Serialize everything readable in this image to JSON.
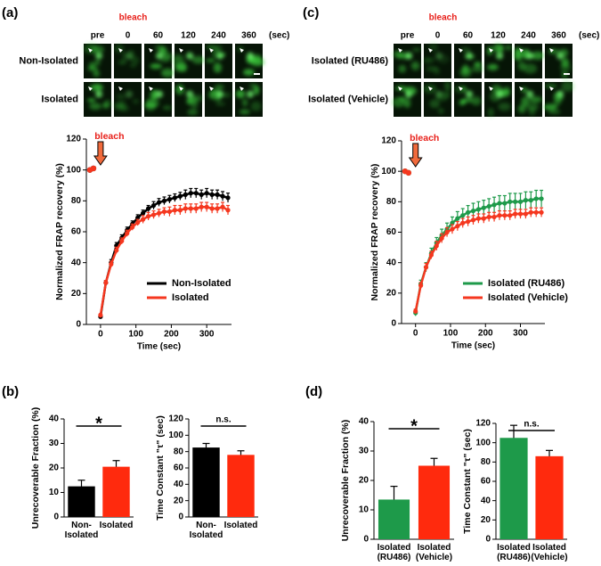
{
  "panels": [
    {
      "label": "(a)",
      "bleach": "bleach",
      "times": [
        "pre",
        "0",
        "60",
        "120",
        "240",
        "360"
      ],
      "unit": "(sec)",
      "rows": [
        "Non-Isolated",
        "Isolated"
      ]
    },
    {
      "label": "(b)"
    },
    {
      "label": "(c)",
      "bleach": "bleach",
      "times": [
        "pre",
        "0",
        "60",
        "120",
        "240",
        "360"
      ],
      "unit": "(sec)",
      "rows": [
        "Isolated (RU486)",
        "Isolated (Vehicle)"
      ]
    },
    {
      "label": "(d)"
    }
  ],
  "chart_data": [
    {
      "type": "line",
      "annotation": "bleach",
      "xlabel": "Time (sec)",
      "ylabel": "Normalized FRAP recovery (%)",
      "xlim": [
        -40,
        370
      ],
      "ylim": [
        0,
        120
      ],
      "xticks": [
        0,
        100,
        200,
        300
      ],
      "yticks": [
        0,
        20,
        40,
        60,
        80,
        100,
        120
      ],
      "pre_x": [
        -30,
        -20
      ],
      "x": [
        0,
        15,
        30,
        45,
        60,
        75,
        90,
        105,
        120,
        135,
        150,
        165,
        180,
        195,
        210,
        225,
        240,
        255,
        270,
        285,
        300,
        315,
        330,
        345,
        360
      ],
      "series": [
        {
          "name": "Non-Isolated",
          "color": "#000000",
          "pre_values": [
            100,
            101
          ],
          "values": [
            5,
            27,
            40,
            51,
            56,
            61,
            65,
            69,
            72,
            75,
            77,
            79,
            80,
            81,
            82,
            83,
            84,
            85,
            85,
            84,
            85,
            84,
            84,
            83,
            82
          ],
          "errors": [
            1,
            1.5,
            2,
            2,
            2,
            2,
            2,
            2,
            2,
            2,
            2.5,
            2.5,
            2.5,
            2.5,
            2.5,
            2.5,
            3,
            3,
            3,
            3,
            3,
            3,
            3,
            3,
            3
          ]
        },
        {
          "name": "Isolated",
          "color": "#f5371f",
          "pre_values": [
            100,
            101
          ],
          "values": [
            6,
            27,
            39,
            48,
            54,
            59,
            63,
            66,
            68,
            70,
            71,
            72,
            73,
            73,
            74,
            74,
            75,
            75,
            75,
            76,
            76,
            75,
            75,
            76,
            74
          ],
          "errors": [
            1,
            1.5,
            2,
            2,
            2,
            2,
            2,
            2,
            2.5,
            2.5,
            2.5,
            2.5,
            2.5,
            3,
            3,
            3,
            3,
            3,
            3,
            3,
            3,
            3,
            3,
            3,
            3
          ]
        }
      ]
    },
    {
      "type": "line",
      "annotation": "bleach",
      "xlabel": "Time (sec)",
      "ylabel": "Normalized FRAP recovery (%)",
      "xlim": [
        -40,
        370
      ],
      "ylim": [
        0,
        120
      ],
      "xticks": [
        0,
        100,
        200,
        300
      ],
      "yticks": [
        0,
        20,
        40,
        60,
        80,
        100,
        120
      ],
      "pre_x": [
        -30,
        -20
      ],
      "x": [
        0,
        15,
        30,
        45,
        60,
        75,
        90,
        105,
        120,
        135,
        150,
        165,
        180,
        195,
        210,
        225,
        240,
        255,
        270,
        285,
        300,
        315,
        330,
        345,
        360
      ],
      "series": [
        {
          "name": "Isolated (RU486)",
          "color": "#1e9a4a",
          "pre_values": [
            100,
            99
          ],
          "values": [
            7,
            26,
            37,
            46,
            53,
            58,
            62,
            66,
            69,
            71,
            73,
            74,
            75,
            76,
            77,
            78,
            79,
            79,
            80,
            80,
            80,
            81,
            81,
            82,
            82
          ],
          "errors": [
            2,
            2.5,
            3,
            3.5,
            3.5,
            4,
            4,
            4,
            4.5,
            4.5,
            4.5,
            5,
            5,
            5,
            5,
            5,
            5,
            5,
            5.5,
            5.5,
            5.5,
            5.5,
            5.5,
            5.5,
            5.5
          ]
        },
        {
          "name": "Isolated (Vehicle)",
          "color": "#f5371f",
          "pre_values": [
            100,
            99
          ],
          "values": [
            8,
            25,
            37,
            45,
            51,
            56,
            60,
            62,
            64,
            66,
            67,
            68,
            69,
            69,
            70,
            70,
            71,
            71,
            71,
            72,
            72,
            72,
            73,
            73,
            73
          ],
          "errors": [
            1.5,
            2,
            2.5,
            2.5,
            3,
            3,
            3,
            3,
            3,
            3,
            3,
            3,
            3,
            3,
            3,
            3,
            3,
            3,
            3,
            3,
            3,
            3,
            3,
            3,
            3
          ]
        }
      ]
    },
    {
      "type": "bar",
      "ylabel": "Unrecoverable Fraction (%)",
      "ylim": [
        0,
        40
      ],
      "yticks": [
        0,
        10,
        20,
        30,
        40
      ],
      "categories": [
        "Non-Isolated",
        "Isolated"
      ],
      "values": [
        12.5,
        20.5
      ],
      "errors": [
        2.5,
        2.5
      ],
      "colors": [
        "#000000",
        "#ff2a0d"
      ],
      "significance": "*"
    },
    {
      "type": "bar",
      "ylabel": "Time Constant \"τ\" (sec)",
      "ylim": [
        0,
        120
      ],
      "yticks": [
        0,
        20,
        40,
        60,
        80,
        100,
        120
      ],
      "categories": [
        "Non-Isolated",
        "Isolated"
      ],
      "values": [
        85,
        76
      ],
      "errors": [
        5,
        5
      ],
      "colors": [
        "#000000",
        "#ff2a0d"
      ],
      "significance": "n.s."
    },
    {
      "type": "bar",
      "ylabel": "Unrecoverable Fraction (%)",
      "ylim": [
        0,
        40
      ],
      "yticks": [
        0,
        10,
        20,
        30,
        40
      ],
      "categories": [
        "Isolated (RU486)",
        "Isolated (Vehicle)"
      ],
      "values": [
        13.5,
        25
      ],
      "errors": [
        4.5,
        2.5
      ],
      "colors": [
        "#1e9a4a",
        "#ff2a0d"
      ],
      "significance": "*"
    },
    {
      "type": "bar",
      "ylabel": "Time Constant \"τ\" (sec)",
      "ylim": [
        0,
        120
      ],
      "yticks": [
        0,
        20,
        40,
        60,
        80,
        100,
        120
      ],
      "categories": [
        "Isolated (RU486)",
        "Isolated (Vehicle)"
      ],
      "values": [
        105,
        86
      ],
      "errors": [
        13,
        6
      ],
      "colors": [
        "#1e9a4a",
        "#ff2a0d"
      ],
      "significance": "n.s."
    }
  ]
}
